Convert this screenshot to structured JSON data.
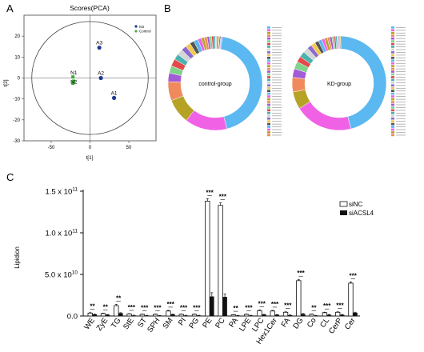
{
  "panels": {
    "a": {
      "letter": "A"
    },
    "b": {
      "letter": "B"
    },
    "c": {
      "letter": "C"
    }
  },
  "colors": {
    "kd": "#1f3a93",
    "control": "#3aaa35",
    "siNC_fill": "#ffffff",
    "siACSL4_fill": "#111111",
    "donut": [
      "#5bb8f0",
      "#f061e6",
      "#b6a325",
      "#f08a5d",
      "#a35bd6",
      "#7fd38a",
      "#e34a4a",
      "#4ab3b0",
      "#d6d6d6",
      "#8c6bd1",
      "#f2c94c",
      "#555555"
    ]
  },
  "chart_data": [
    {
      "type": "scatter",
      "title": "Scores(PCA)",
      "xlabel": "t[1]",
      "ylabel": "t[2]",
      "xlim": [
        -85,
        85
      ],
      "ylim": [
        -30,
        30
      ],
      "xticks": [
        "-50",
        "0",
        "50"
      ],
      "yticks": [
        "20",
        "10",
        "0",
        "-10",
        "-20",
        "-30"
      ],
      "legend": [
        "KD",
        "Control"
      ],
      "legend_position": "top-right",
      "points": [
        {
          "label": "A1",
          "group": "KD",
          "x": 31,
          "y": -9.5
        },
        {
          "label": "A2",
          "group": "KD",
          "x": 14,
          "y": 0
        },
        {
          "label": "A3",
          "group": "KD",
          "x": 12,
          "y": 14.5
        },
        {
          "label": "N1",
          "group": "Control",
          "x": -22,
          "y": 0.5
        },
        {
          "label": "N2",
          "group": "Control",
          "x": -21,
          "y": -1.5
        },
        {
          "label": "N3",
          "group": "Control",
          "x": -22,
          "y": -2.5
        }
      ]
    },
    {
      "type": "pie",
      "donut": true,
      "center_label": "control-group",
      "slices": [
        0.46,
        0.145,
        0.085,
        0.065,
        0.03,
        0.025,
        0.025,
        0.02,
        0.02,
        0.018,
        0.017,
        0.015,
        0.015,
        0.012,
        0.01,
        0.01,
        0.008,
        0.008,
        0.007,
        0.006,
        0.005,
        0.005,
        0.004,
        0.004,
        0.003,
        0.003
      ]
    },
    {
      "type": "pie",
      "donut": true,
      "center_label": "KD-group",
      "slices": [
        0.46,
        0.2,
        0.06,
        0.05,
        0.03,
        0.025,
        0.02,
        0.02,
        0.018,
        0.016,
        0.015,
        0.013,
        0.012,
        0.01,
        0.01,
        0.008,
        0.008,
        0.007,
        0.006,
        0.005,
        0.005,
        0.004,
        0.003,
        0.003
      ]
    },
    {
      "type": "bar",
      "ylabel": "Lipidion",
      "ylim": [
        0,
        150000000000
      ],
      "ytick_labels": [
        {
          "value": 0,
          "label": "0.0"
        },
        {
          "value": 50000000000,
          "label": "5.0 x 10",
          "exp": "10"
        },
        {
          "value": 100000000000,
          "label": "1.0 x 10",
          "exp": "11"
        },
        {
          "value": 150000000000,
          "label": "1.5 x 10",
          "exp": "11"
        }
      ],
      "categories": [
        "WE",
        "ZyE",
        "TG",
        "StE",
        "ST",
        "SPH",
        "SM",
        "PI",
        "PG",
        "PE",
        "PC",
        "PA",
        "LPE",
        "LPC",
        "Hex1Cer",
        "FA",
        "DG",
        "Co",
        "CL",
        "CerP",
        "Cer"
      ],
      "series": [
        {
          "name": "siNC",
          "values": [
            3500000000,
            3000000000,
            12500000000,
            2500000000,
            2000000000,
            2000000000,
            6000000000,
            2000000000,
            2000000000,
            138000000000,
            133000000000,
            1500000000,
            2000000000,
            6500000000,
            6000000000,
            4500000000,
            42500000000,
            2000000000,
            4000000000,
            4500000000,
            39500000000
          ]
        },
        {
          "name": "siACSL4",
          "values": [
            2000000000,
            1500000000,
            3500000000,
            800000000,
            700000000,
            500000000,
            2000000000,
            700000000,
            700000000,
            23500000000,
            23000000000,
            600000000,
            700000000,
            1800000000,
            1500000000,
            1000000000,
            2500000000,
            500000000,
            1500000000,
            1500000000,
            4000000000
          ]
        }
      ],
      "errors": [
        {
          "siNC": 600000000,
          "siACSL4": 300000000
        },
        {
          "siNC": 500000000,
          "siACSL4": 300000000
        },
        {
          "siNC": 1500000000,
          "siACSL4": 500000000
        },
        {
          "siNC": 400000000,
          "siACSL4": 200000000
        },
        {
          "siNC": 400000000,
          "siACSL4": 200000000
        },
        {
          "siNC": 400000000,
          "siACSL4": 200000000
        },
        {
          "siNC": 800000000,
          "siACSL4": 300000000
        },
        {
          "siNC": 400000000,
          "siACSL4": 200000000
        },
        {
          "siNC": 400000000,
          "siACSL4": 200000000
        },
        {
          "siNC": 3000000000,
          "siACSL4": 4500000000
        },
        {
          "siNC": 3000000000,
          "siACSL4": 3500000000
        },
        {
          "siNC": 300000000,
          "siACSL4": 200000000
        },
        {
          "siNC": 400000000,
          "siACSL4": 200000000
        },
        {
          "siNC": 800000000,
          "siACSL4": 300000000
        },
        {
          "siNC": 800000000,
          "siACSL4": 300000000
        },
        {
          "siNC": 600000000,
          "siACSL4": 300000000
        },
        {
          "siNC": 1500000000,
          "siACSL4": 500000000
        },
        {
          "siNC": 400000000,
          "siACSL4": 200000000
        },
        {
          "siNC": 600000000,
          "siACSL4": 300000000
        },
        {
          "siNC": 600000000,
          "siACSL4": 300000000
        },
        {
          "siNC": 1500000000,
          "siACSL4": 600000000
        }
      ],
      "significance": [
        "**",
        "**",
        "**",
        "***",
        "***",
        "***",
        "***",
        "***",
        "***",
        "***",
        "***",
        "**",
        "***",
        "***",
        "***",
        "***",
        "***",
        "**",
        "***",
        "***",
        "***"
      ],
      "legend_position": "top-right"
    }
  ]
}
